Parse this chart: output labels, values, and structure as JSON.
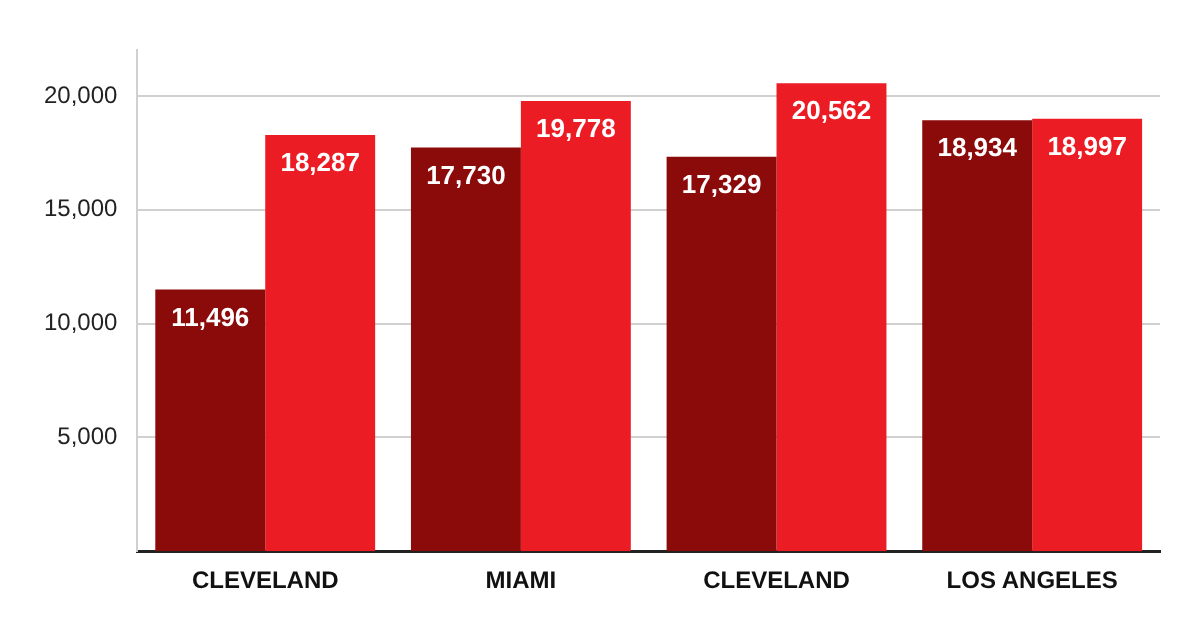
{
  "chart_data": {
    "type": "bar",
    "categories": [
      "CLEVELAND",
      "MIAMI",
      "CLEVELAND",
      "LOS ANGELES"
    ],
    "series": [
      {
        "color": "#8b0a0a",
        "values": [
          11496,
          17730,
          17329,
          18934
        ],
        "value_labels": [
          "11,496",
          "17,730",
          "17,329",
          "18,934"
        ]
      },
      {
        "color": "#ec1c24",
        "values": [
          18287,
          19778,
          20562,
          18997
        ],
        "value_labels": [
          "18,287",
          "19,778",
          "20,562",
          "18,997"
        ]
      }
    ],
    "ylim": [
      0,
      22000
    ],
    "yticks": [
      {
        "value": 5000,
        "label": "5,000"
      },
      {
        "value": 10000,
        "label": "10,000"
      },
      {
        "value": 15000,
        "label": "15,000"
      },
      {
        "value": 20000,
        "label": "20,000"
      }
    ],
    "grid": "y",
    "legend": false
  }
}
